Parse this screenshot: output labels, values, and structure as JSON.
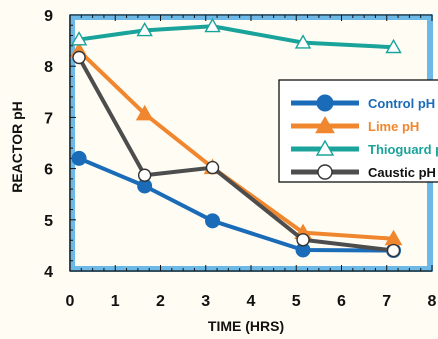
{
  "chart_data": {
    "type": "line",
    "xlabel": "TIME (HRS)",
    "ylabel": "REACTOR pH",
    "xlim": [
      0,
      8
    ],
    "ylim": [
      4,
      9
    ],
    "xticks": [
      0,
      1,
      2,
      3,
      4,
      5,
      6,
      7,
      8
    ],
    "yticks": [
      4,
      5,
      6,
      7,
      8,
      9
    ],
    "grid": false,
    "legend_position": "right",
    "frame_color": "#6cb8e6",
    "series": [
      {
        "name": "Control pH",
        "color": "#1a6bb8",
        "marker": "filled-circle",
        "x": [
          0.2,
          1.65,
          3.15,
          5.15,
          7.15
        ],
        "y": [
          6.2,
          5.66,
          4.98,
          4.41,
          4.4
        ]
      },
      {
        "name": "Lime pH",
        "color": "#f0872f",
        "marker": "filled-triangle",
        "x": [
          0.2,
          1.65,
          3.15,
          5.15,
          7.15
        ],
        "y": [
          8.3,
          7.07,
          6.02,
          4.75,
          4.63
        ]
      },
      {
        "name": "Thioguard pH",
        "color": "#1aa39a",
        "marker": "open-triangle",
        "x": [
          0.2,
          1.65,
          3.15,
          5.15,
          7.15
        ],
        "y": [
          8.52,
          8.7,
          8.78,
          8.46,
          8.37
        ]
      },
      {
        "name": "Caustic pH",
        "color": "#4d4d4d",
        "marker": "open-circle",
        "x": [
          0.2,
          1.65,
          3.15,
          5.15,
          7.15
        ],
        "y": [
          8.17,
          5.87,
          6.02,
          4.61,
          4.4
        ]
      }
    ]
  }
}
